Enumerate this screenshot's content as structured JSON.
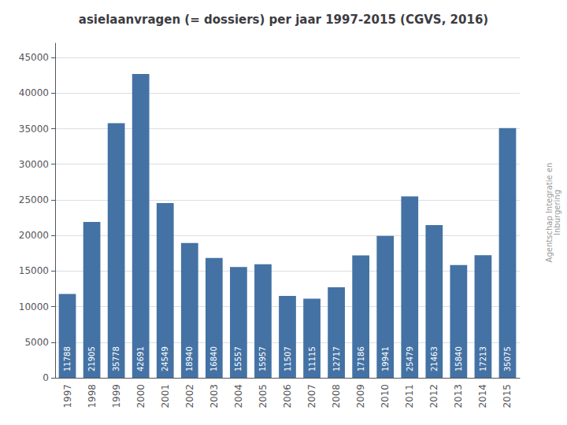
{
  "chart_data": {
    "type": "bar",
    "title": "asielaanvragen (= dossiers) per jaar 1997-2015 (CGVS, 2016)",
    "categories": [
      "1997",
      "1998",
      "1999",
      "2000",
      "2001",
      "2002",
      "2003",
      "2004",
      "2005",
      "2006",
      "2007",
      "2008",
      "2009",
      "2010",
      "2011",
      "2012",
      "2013",
      "2014",
      "2015"
    ],
    "values": [
      11788,
      21905,
      35778,
      42691,
      24549,
      18940,
      16840,
      15557,
      15957,
      11507,
      11115,
      12717,
      17186,
      19941,
      25479,
      21463,
      15840,
      17213,
      35075
    ],
    "color": "#4472A4",
    "ylim": [
      0,
      47000
    ],
    "yticks": [
      0,
      5000,
      10000,
      15000,
      20000,
      25000,
      30000,
      35000,
      40000,
      45000
    ],
    "grid": true,
    "data_labels": true,
    "annotations": [
      "Agentschap Integratie en\nInburgering"
    ]
  }
}
